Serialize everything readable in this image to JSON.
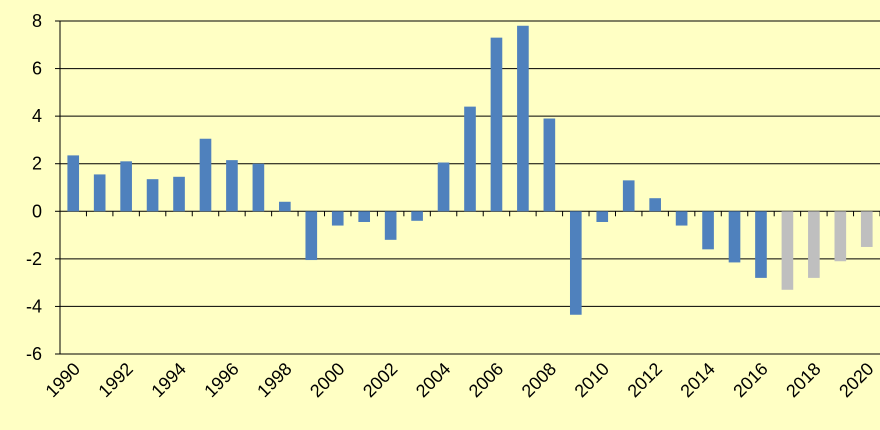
{
  "chart_data": {
    "type": "bar",
    "categories": [
      "1990",
      null,
      "1992",
      null,
      "1994",
      null,
      "1996",
      null,
      "1998",
      null,
      "2000",
      null,
      "2002",
      null,
      "2004",
      null,
      "2006",
      null,
      "2008",
      null,
      "2010",
      null,
      "2012",
      null,
      "2014",
      null,
      "2016",
      null,
      "2018",
      null,
      "2020"
    ],
    "values": [
      2.35,
      1.55,
      2.1,
      1.35,
      1.45,
      3.05,
      2.15,
      2.0,
      0.4,
      -2.05,
      -0.6,
      -0.45,
      -1.2,
      -0.4,
      2.05,
      4.4,
      7.3,
      7.8,
      3.9,
      -4.35,
      -0.45,
      1.3,
      0.55,
      -0.6,
      -1.6,
      -2.15,
      -2.8,
      -3.3,
      -2.8,
      -2.1,
      -1.5
    ],
    "colors": [
      "#4f81bd",
      "#4f81bd",
      "#4f81bd",
      "#4f81bd",
      "#4f81bd",
      "#4f81bd",
      "#4f81bd",
      "#4f81bd",
      "#4f81bd",
      "#4f81bd",
      "#4f81bd",
      "#4f81bd",
      "#4f81bd",
      "#4f81bd",
      "#4f81bd",
      "#4f81bd",
      "#4f81bd",
      "#4f81bd",
      "#4f81bd",
      "#4f81bd",
      "#4f81bd",
      "#4f81bd",
      "#4f81bd",
      "#4f81bd",
      "#4f81bd",
      "#4f81bd",
      "#4f81bd",
      "#bfbfbf",
      "#bfbfbf",
      "#bfbfbf",
      "#bfbfbf"
    ],
    "ylim": [
      -6,
      8
    ],
    "yticks": [
      -6,
      -4,
      -2,
      0,
      2,
      4,
      6,
      8
    ],
    "grid": true
  }
}
